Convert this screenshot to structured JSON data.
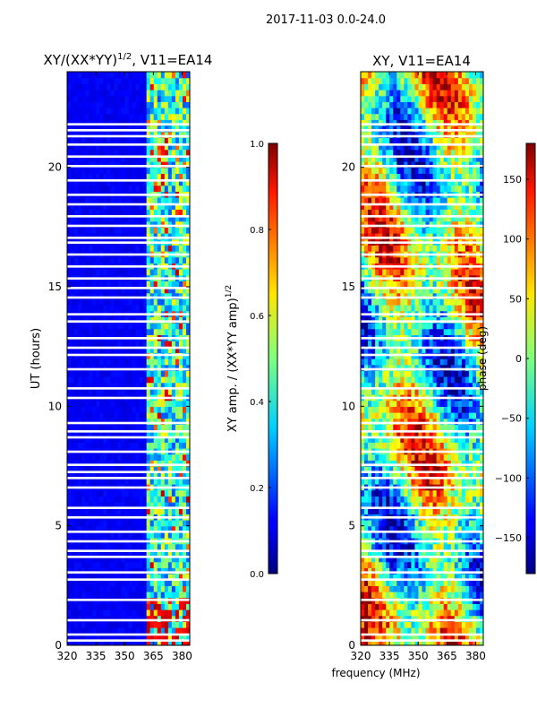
{
  "figure_title": "2017-11-03 0.0-24.0",
  "chart_data": [
    {
      "type": "heatmap",
      "title_main": "XY/(XX*YY)",
      "title_sup": "1/2",
      "title_tail": ", V11=EA14",
      "xlabel": "",
      "ylabel": "UT (hours)",
      "xlim": [
        320,
        384
      ],
      "ylim": [
        0,
        24
      ],
      "xticks": [
        320,
        335,
        350,
        365,
        380
      ],
      "yticks": [
        0,
        5,
        10,
        15,
        20
      ],
      "colorbar": {
        "label_main": "XY amp. / (XX*YY amp)",
        "label_sup": "1/2",
        "range": [
          0.0,
          1.0
        ],
        "ticks": [
          "0.0",
          "0.2",
          "0.4",
          "0.6",
          "0.8",
          "1.0"
        ],
        "tick_values": [
          0.0,
          0.2,
          0.4,
          0.6,
          0.8,
          1.0
        ]
      }
    },
    {
      "type": "heatmap",
      "title": "XY, V11=EA14",
      "xlabel": "frequency (MHz)",
      "ylabel": "",
      "xlim": [
        320,
        384
      ],
      "ylim": [
        0,
        24
      ],
      "xticks": [
        320,
        335,
        350,
        365,
        380
      ],
      "yticks": [
        0,
        5,
        10,
        15,
        20
      ],
      "colorbar": {
        "label": "phase (deg)",
        "range": [
          -180,
          180
        ],
        "ticks": [
          "−150",
          "−100",
          "−50",
          "0",
          "50",
          "100",
          "150"
        ],
        "tick_values": [
          -150,
          -100,
          -50,
          0,
          50,
          100,
          150
        ]
      }
    }
  ],
  "data_gaps_ut": [
    0.2,
    0.45,
    1.05,
    1.9,
    2.75,
    3.05,
    3.7,
    3.95,
    4.35,
    4.75,
    5.35,
    5.75,
    6.6,
    7.0,
    7.25,
    7.55,
    8.1,
    8.7,
    8.95,
    9.3,
    10.35,
    10.75,
    11.55,
    12.15,
    12.45,
    12.85,
    13.55,
    13.85,
    14.55,
    14.95,
    15.35,
    15.85,
    16.35,
    16.85,
    17.05,
    17.55,
    17.95,
    18.45,
    18.85,
    19.45,
    20.05,
    20.45,
    20.95,
    21.3,
    21.55,
    21.8
  ]
}
